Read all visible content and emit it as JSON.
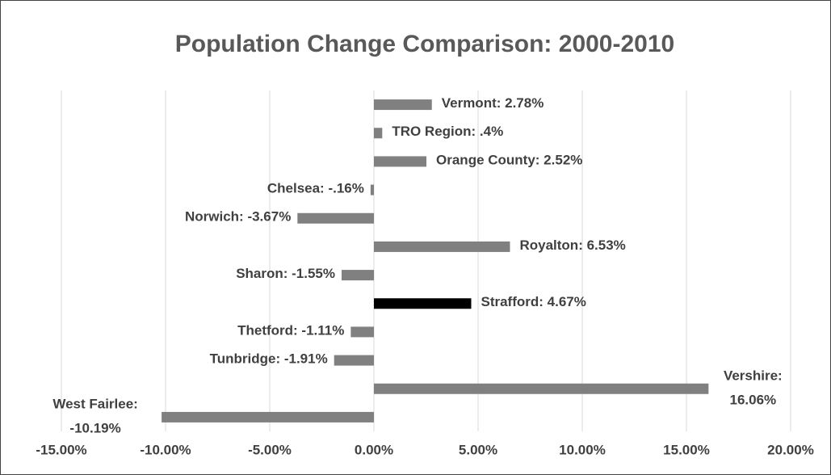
{
  "chart_data": {
    "type": "barh",
    "title": "Population Change Comparison: 2000-2010",
    "values": [
      2.78,
      0.4,
      2.52,
      -0.16,
      -3.67,
      6.53,
      -1.55,
      4.67,
      -1.11,
      -1.91,
      16.06,
      -10.19
    ],
    "value_labels": [
      "Vermont: 2.78%",
      "TRO Region: .4%",
      "Orange County: 2.52%",
      "Chelsea: -.16%",
      "Norwich: -3.67%",
      "Royalton: 6.53%",
      "Sharon: -1.55%",
      "Strafford: 4.67%",
      "Thetford: -1.11%",
      "Tunbridge: -1.91%",
      "Vershire: 16.06%",
      "West Fairlee: -10.19%"
    ],
    "colors": [
      "#808080",
      "#808080",
      "#808080",
      "#808080",
      "#808080",
      "#808080",
      "#808080",
      "#000000",
      "#808080",
      "#808080",
      "#808080",
      "#808080"
    ],
    "xlim": [
      -15,
      20
    ],
    "xticks": [
      {
        "value": -15,
        "label": "-15.00%"
      },
      {
        "value": -10,
        "label": "-10.00%"
      },
      {
        "value": -5,
        "label": "-5.00%"
      },
      {
        "value": 0,
        "label": "0.00%"
      },
      {
        "value": 5,
        "label": "5.00%"
      },
      {
        "value": 10,
        "label": "10.00%"
      },
      {
        "value": 15,
        "label": "15.00%"
      },
      {
        "value": 20,
        "label": "20.00%"
      }
    ],
    "grid": true
  }
}
